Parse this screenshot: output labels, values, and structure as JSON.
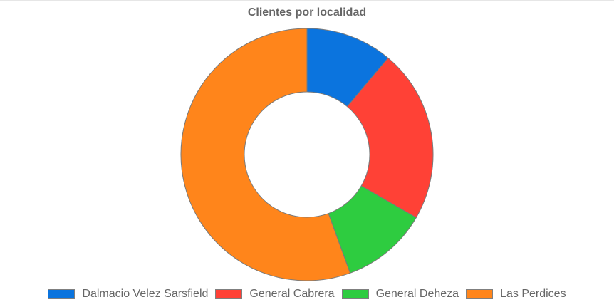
{
  "chart_data": {
    "type": "pie",
    "variant": "doughnut",
    "title": "Clientes por localidad",
    "categories": [
      "Dalmacio Velez Sarsfield",
      "General Cabrera",
      "General Deheza",
      "Las Perdices"
    ],
    "values": [
      1,
      2,
      1,
      5
    ],
    "colors": [
      "#0b74de",
      "#ff4136",
      "#2ecc40",
      "#ff851b"
    ],
    "legend_position": "bottom"
  }
}
